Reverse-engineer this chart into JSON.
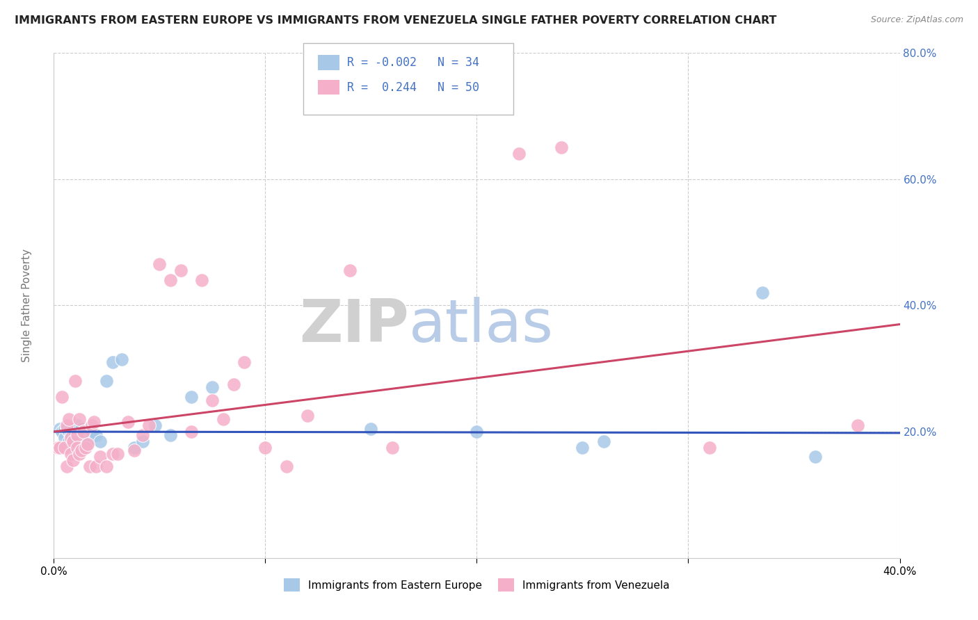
{
  "title": "IMMIGRANTS FROM EASTERN EUROPE VS IMMIGRANTS FROM VENEZUELA SINGLE FATHER POVERTY CORRELATION CHART",
  "source": "Source: ZipAtlas.com",
  "ylabel": "Single Father Poverty",
  "xlim": [
    0.0,
    0.4
  ],
  "ylim": [
    0.0,
    0.8
  ],
  "yticks": [
    0.0,
    0.2,
    0.4,
    0.6,
    0.8
  ],
  "ytick_labels": [
    "",
    "20.0%",
    "40.0%",
    "60.0%",
    "80.0%"
  ],
  "xtick_positions": [
    0.0,
    0.1,
    0.2,
    0.3,
    0.4
  ],
  "xtick_labels": [
    "0.0%",
    "",
    "",
    "",
    "40.0%"
  ],
  "blue_R": "-0.002",
  "blue_N": "34",
  "pink_R": "0.244",
  "pink_N": "50",
  "blue_label": "Immigrants from Eastern Europe",
  "pink_label": "Immigrants from Venezuela",
  "blue_color": "#a8c8e8",
  "pink_color": "#f5afc8",
  "blue_line_color": "#3355bb",
  "pink_line_color": "#cc4466",
  "blue_scatter_x": [
    0.003,
    0.004,
    0.005,
    0.005,
    0.006,
    0.007,
    0.007,
    0.008,
    0.009,
    0.009,
    0.01,
    0.011,
    0.012,
    0.013,
    0.015,
    0.016,
    0.018,
    0.02,
    0.022,
    0.025,
    0.028,
    0.032,
    0.038,
    0.042,
    0.048,
    0.055,
    0.065,
    0.075,
    0.15,
    0.2,
    0.25,
    0.26,
    0.335,
    0.36
  ],
  "blue_scatter_y": [
    0.205,
    0.2,
    0.205,
    0.19,
    0.205,
    0.2,
    0.185,
    0.195,
    0.205,
    0.185,
    0.195,
    0.21,
    0.185,
    0.205,
    0.195,
    0.185,
    0.2,
    0.195,
    0.185,
    0.28,
    0.31,
    0.315,
    0.175,
    0.185,
    0.21,
    0.195,
    0.255,
    0.27,
    0.205,
    0.2,
    0.175,
    0.185,
    0.42,
    0.16
  ],
  "pink_scatter_x": [
    0.002,
    0.003,
    0.004,
    0.005,
    0.006,
    0.006,
    0.007,
    0.008,
    0.008,
    0.009,
    0.009,
    0.01,
    0.011,
    0.011,
    0.012,
    0.012,
    0.013,
    0.014,
    0.015,
    0.016,
    0.017,
    0.018,
    0.019,
    0.02,
    0.022,
    0.025,
    0.028,
    0.03,
    0.035,
    0.038,
    0.042,
    0.045,
    0.05,
    0.055,
    0.06,
    0.065,
    0.07,
    0.075,
    0.08,
    0.085,
    0.09,
    0.1,
    0.11,
    0.12,
    0.14,
    0.16,
    0.22,
    0.24,
    0.31,
    0.38
  ],
  "pink_scatter_y": [
    0.175,
    0.175,
    0.255,
    0.175,
    0.21,
    0.145,
    0.22,
    0.19,
    0.165,
    0.185,
    0.155,
    0.28,
    0.195,
    0.175,
    0.22,
    0.165,
    0.17,
    0.2,
    0.175,
    0.18,
    0.145,
    0.21,
    0.215,
    0.145,
    0.16,
    0.145,
    0.165,
    0.165,
    0.215,
    0.17,
    0.195,
    0.21,
    0.465,
    0.44,
    0.455,
    0.2,
    0.44,
    0.25,
    0.22,
    0.275,
    0.31,
    0.175,
    0.145,
    0.225,
    0.455,
    0.175,
    0.64,
    0.65,
    0.175,
    0.21
  ],
  "blue_line_x": [
    0.0,
    0.4
  ],
  "blue_line_y": [
    0.2,
    0.198
  ],
  "pink_line_x": [
    0.0,
    0.4
  ],
  "pink_line_y": [
    0.2,
    0.37
  ]
}
